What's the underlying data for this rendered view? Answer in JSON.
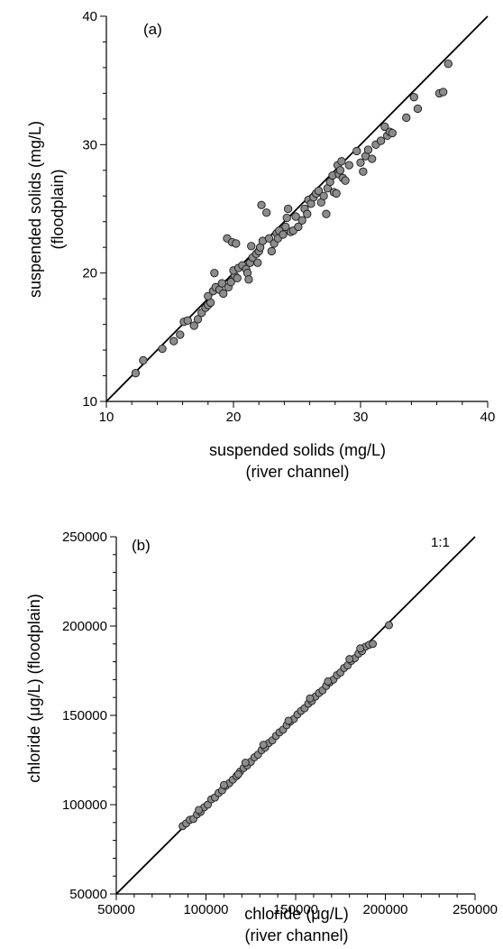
{
  "chart_data": [
    {
      "type": "scatter",
      "panel_label": "(a)",
      "xlabel": [
        "suspended solids (mg/L)",
        "(river channel)"
      ],
      "ylabel": [
        "suspended solids (mg/L)",
        "(floodplain)"
      ],
      "xlim": [
        10,
        40
      ],
      "ylim": [
        10,
        40
      ],
      "xticks": [
        10,
        20,
        30,
        40
      ],
      "yticks": [
        10,
        20,
        30,
        40
      ],
      "xtick_labels": [
        "10",
        "20",
        "30",
        "40"
      ],
      "ytick_labels": [
        "10",
        "20",
        "30",
        "40"
      ],
      "reference_line": [
        [
          10,
          10
        ],
        [
          40,
          40
        ]
      ],
      "grid": false,
      "points": [
        [
          12.3,
          12.2
        ],
        [
          12.9,
          13.2
        ],
        [
          14.4,
          14.1
        ],
        [
          15.3,
          14.7
        ],
        [
          15.8,
          15.2
        ],
        [
          16.1,
          16.2
        ],
        [
          16.4,
          16.3
        ],
        [
          16.9,
          15.9
        ],
        [
          17.2,
          16.4
        ],
        [
          17.5,
          16.9
        ],
        [
          17.8,
          17.3
        ],
        [
          18.0,
          17.5
        ],
        [
          18.2,
          17.7
        ],
        [
          18.0,
          18.2
        ],
        [
          18.4,
          18.6
        ],
        [
          18.6,
          18.9
        ],
        [
          18.5,
          20.0
        ],
        [
          18.9,
          18.7
        ],
        [
          19.2,
          18.4
        ],
        [
          19.1,
          19.2
        ],
        [
          19.6,
          18.9
        ],
        [
          19.8,
          19.3
        ],
        [
          19.5,
          22.7
        ],
        [
          19.9,
          22.4
        ],
        [
          20.2,
          22.3
        ],
        [
          20.1,
          19.8
        ],
        [
          20.0,
          20.2
        ],
        [
          20.3,
          19.6
        ],
        [
          20.4,
          20.4
        ],
        [
          20.7,
          20.6
        ],
        [
          21.0,
          20.3
        ],
        [
          21.1,
          20.0
        ],
        [
          21.3,
          20.8
        ],
        [
          21.2,
          19.5
        ],
        [
          21.5,
          21.2
        ],
        [
          21.4,
          22.1
        ],
        [
          21.8,
          21.5
        ],
        [
          21.9,
          20.8
        ],
        [
          22.0,
          21.7
        ],
        [
          22.1,
          22.0
        ],
        [
          22.3,
          22.5
        ],
        [
          22.2,
          25.3
        ],
        [
          22.6,
          24.7
        ],
        [
          22.8,
          22.7
        ],
        [
          23.0,
          21.7
        ],
        [
          23.2,
          22.3
        ],
        [
          23.4,
          23.1
        ],
        [
          23.5,
          22.7
        ],
        [
          23.6,
          23.3
        ],
        [
          23.9,
          23.0
        ],
        [
          24.1,
          23.6
        ],
        [
          24.2,
          24.3
        ],
        [
          24.3,
          25.0
        ],
        [
          24.5,
          23.2
        ],
        [
          24.7,
          23.3
        ],
        [
          24.9,
          24.4
        ],
        [
          25.1,
          23.6
        ],
        [
          25.4,
          24.1
        ],
        [
          25.6,
          25.0
        ],
        [
          25.8,
          24.6
        ],
        [
          25.9,
          25.7
        ],
        [
          26.1,
          25.4
        ],
        [
          26.3,
          25.9
        ],
        [
          26.5,
          26.2
        ],
        [
          26.7,
          26.4
        ],
        [
          26.9,
          25.5
        ],
        [
          27.1,
          26.0
        ],
        [
          27.4,
          26.6
        ],
        [
          27.3,
          24.6
        ],
        [
          27.6,
          27.1
        ],
        [
          27.8,
          27.6
        ],
        [
          27.9,
          26.3
        ],
        [
          28.1,
          26.2
        ],
        [
          28.2,
          28.4
        ],
        [
          28.3,
          27.7
        ],
        [
          28.4,
          28.0
        ],
        [
          28.6,
          27.4
        ],
        [
          28.5,
          28.7
        ],
        [
          28.8,
          27.2
        ],
        [
          29.1,
          28.4
        ],
        [
          29.7,
          29.5
        ],
        [
          30.0,
          28.6
        ],
        [
          30.2,
          27.9
        ],
        [
          30.4,
          29.1
        ],
        [
          30.6,
          29.6
        ],
        [
          30.9,
          28.9
        ],
        [
          31.2,
          30.0
        ],
        [
          31.6,
          30.3
        ],
        [
          31.9,
          31.4
        ],
        [
          32.1,
          30.7
        ],
        [
          32.3,
          31.0
        ],
        [
          32.5,
          30.9
        ],
        [
          33.6,
          32.1
        ],
        [
          34.2,
          33.7
        ],
        [
          34.5,
          32.8
        ],
        [
          36.2,
          34.0
        ],
        [
          36.5,
          34.1
        ],
        [
          36.9,
          36.3
        ]
      ]
    },
    {
      "type": "scatter",
      "panel_label": "(b)",
      "annotation": "1:1",
      "xlabel": [
        "chloride (μg/L)",
        "(river channel)"
      ],
      "ylabel": [
        "chloride (μg/L) (floodplain)"
      ],
      "xlim": [
        50000,
        250000
      ],
      "ylim": [
        50000,
        250000
      ],
      "xticks": [
        50000,
        100000,
        150000,
        200000,
        250000
      ],
      "yticks": [
        50000,
        100000,
        150000,
        200000,
        250000
      ],
      "xtick_labels": [
        "50000",
        "100000",
        "150000",
        "200000",
        "250000"
      ],
      "ytick_labels": [
        "50000",
        "100000",
        "150000",
        "200000",
        "250000"
      ],
      "reference_line": [
        [
          50000,
          50000
        ],
        [
          250000,
          250000
        ]
      ],
      "grid": false,
      "points": [
        [
          87000,
          88000
        ],
        [
          89000,
          89500
        ],
        [
          91000,
          91500
        ],
        [
          93000,
          92000
        ],
        [
          95000,
          94500
        ],
        [
          97000,
          96000
        ],
        [
          99000,
          98500
        ],
        [
          101000,
          100000
        ],
        [
          103000,
          103000
        ],
        [
          105000,
          104000
        ],
        [
          107000,
          106500
        ],
        [
          109000,
          108000
        ],
        [
          111000,
          110500
        ],
        [
          113000,
          112000
        ],
        [
          115000,
          114000
        ],
        [
          117000,
          116000
        ],
        [
          119000,
          118500
        ],
        [
          121000,
          120500
        ],
        [
          123000,
          122000
        ],
        [
          125000,
          124000
        ],
        [
          127000,
          126500
        ],
        [
          129000,
          128000
        ],
        [
          131000,
          130500
        ],
        [
          133000,
          132000
        ],
        [
          135000,
          134500
        ],
        [
          137000,
          136000
        ],
        [
          139000,
          138500
        ],
        [
          141000,
          140500
        ],
        [
          143000,
          142000
        ],
        [
          145000,
          144500
        ],
        [
          147000,
          146500
        ],
        [
          149000,
          148000
        ],
        [
          151000,
          150500
        ],
        [
          153000,
          152500
        ],
        [
          155000,
          154000
        ],
        [
          157000,
          156500
        ],
        [
          159000,
          158000
        ],
        [
          161000,
          160500
        ],
        [
          163000,
          162500
        ],
        [
          165000,
          164000
        ],
        [
          167000,
          166500
        ],
        [
          169000,
          168500
        ],
        [
          171000,
          170000
        ],
        [
          173000,
          172500
        ],
        [
          175000,
          174000
        ],
        [
          177000,
          176500
        ],
        [
          179000,
          178000
        ],
        [
          181000,
          180500
        ],
        [
          183000,
          182000
        ],
        [
          185000,
          184500
        ],
        [
          187000,
          186000
        ],
        [
          189000,
          188500
        ],
        [
          191000,
          189500
        ],
        [
          193000,
          190000
        ],
        [
          202000,
          200500
        ],
        [
          96000,
          97000
        ],
        [
          110000,
          111000
        ],
        [
          122000,
          123500
        ],
        [
          132000,
          133500
        ],
        [
          146000,
          147000
        ],
        [
          158000,
          159500
        ],
        [
          168000,
          169000
        ],
        [
          180000,
          181500
        ],
        [
          186000,
          187500
        ],
        [
          118000,
          117000
        ]
      ]
    }
  ]
}
